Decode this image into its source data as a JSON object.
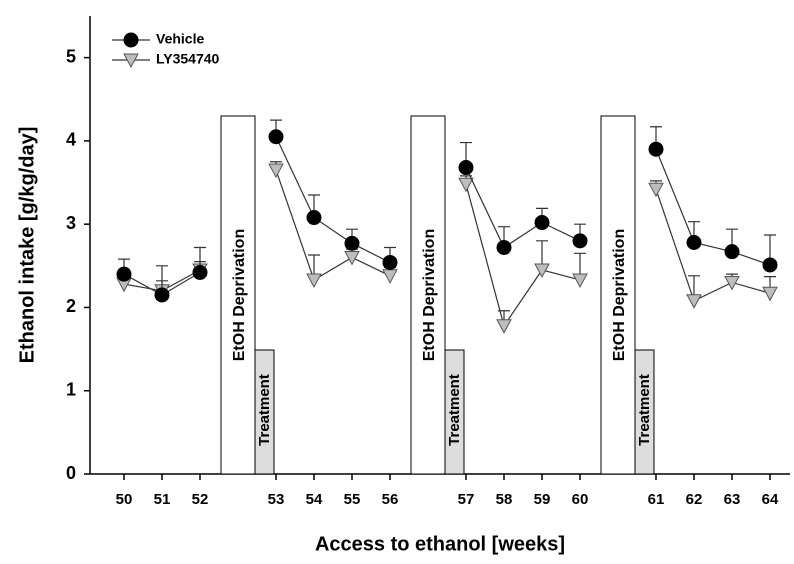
{
  "chart_data": {
    "type": "line",
    "ylabel": "Ethanol intake [g/kg/day]",
    "xlabel": "Access to ethanol [weeks]",
    "categories": [
      "50",
      "51",
      "52",
      null,
      "53",
      "54",
      "55",
      "56",
      null,
      "57",
      "58",
      "59",
      "60",
      null,
      "61",
      "62",
      "63",
      "64"
    ],
    "series": [
      {
        "name": "Vehicle",
        "color": "#000000",
        "marker": "circle",
        "values": [
          2.4,
          2.15,
          2.42,
          null,
          4.05,
          3.08,
          2.77,
          2.54,
          null,
          3.68,
          2.72,
          3.02,
          2.8,
          null,
          3.9,
          2.78,
          2.67,
          2.51
        ],
        "errors": [
          0.18,
          0.35,
          0.3,
          null,
          0.2,
          0.27,
          0.17,
          0.18,
          null,
          0.3,
          0.25,
          0.17,
          0.2,
          null,
          0.27,
          0.25,
          0.27,
          0.36
        ]
      },
      {
        "name": "LY354740",
        "color": "#bdbdbd",
        "marker": "triangle",
        "values": [
          2.28,
          2.2,
          2.45,
          null,
          3.65,
          2.33,
          2.6,
          2.38,
          null,
          3.48,
          1.78,
          2.45,
          2.33,
          null,
          3.42,
          2.08,
          2.3,
          2.17
        ],
        "errors": [
          0.1,
          0.12,
          0.1,
          null,
          0.1,
          0.3,
          0.1,
          0.1,
          null,
          0.1,
          0.18,
          0.35,
          0.32,
          null,
          0.1,
          0.3,
          0.1,
          0.2
        ]
      }
    ],
    "deprivation_label": "EtOH Deprivation",
    "treatment_label": "Treatment",
    "ylim": [
      0,
      5.5
    ],
    "yticks": [
      0,
      1,
      2,
      3,
      4,
      5
    ],
    "legend": "upper-left"
  }
}
